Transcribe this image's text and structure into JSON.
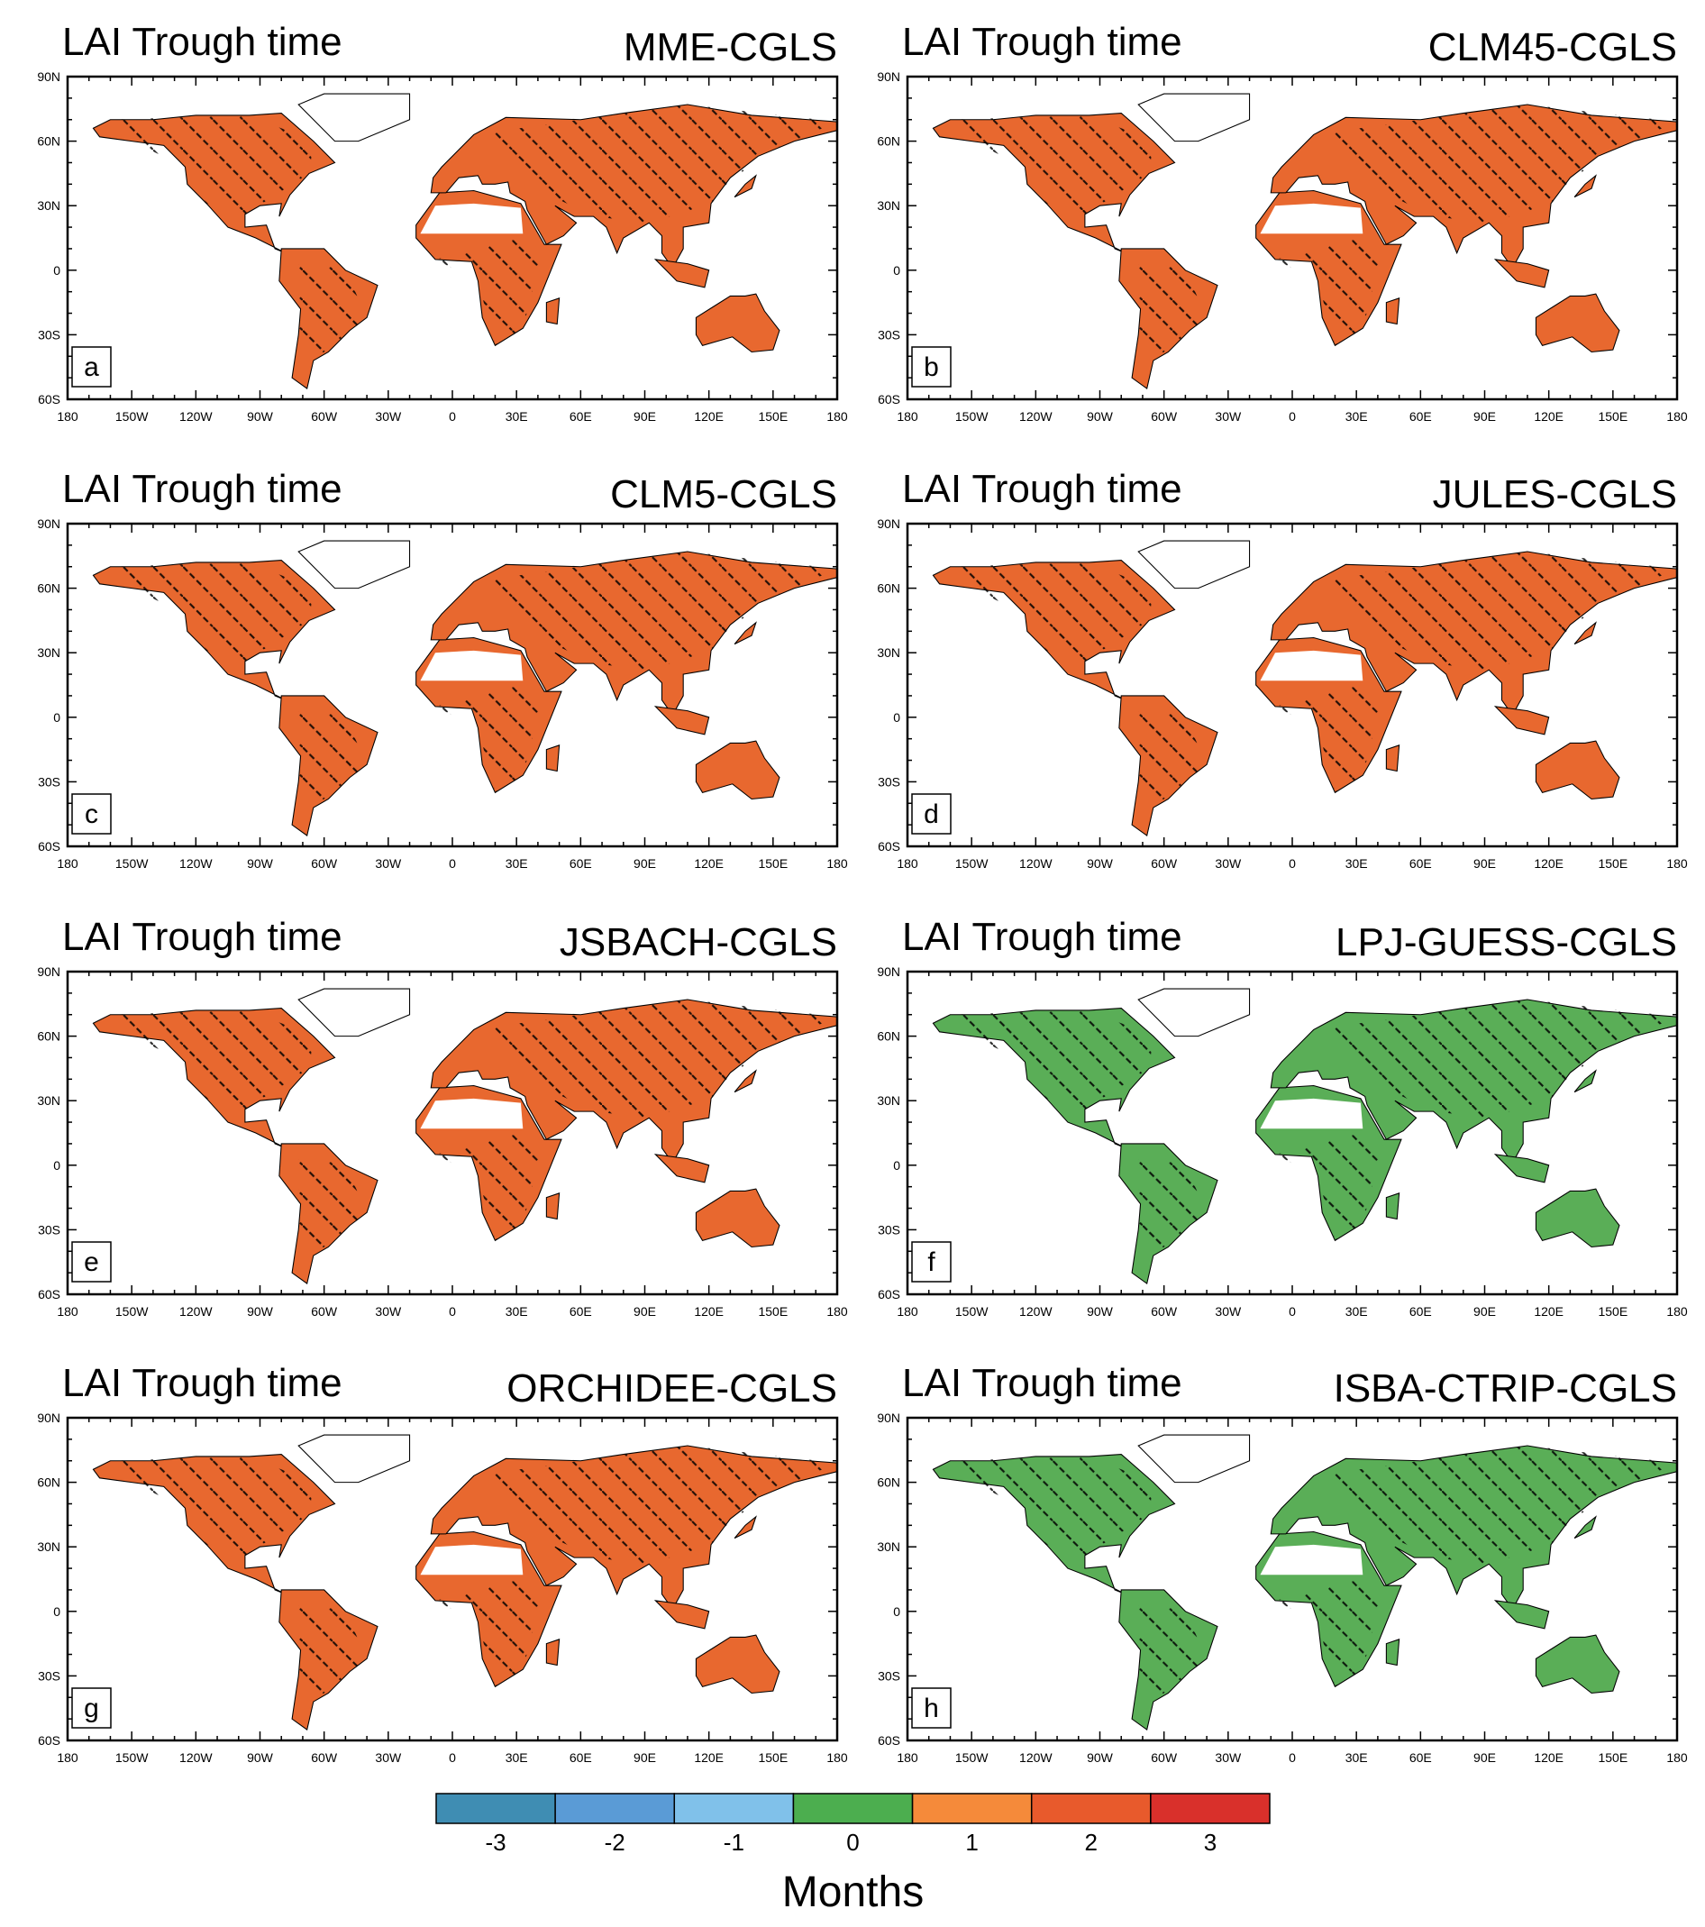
{
  "panels": [
    {
      "title": "LAI Trough time",
      "model": "MME-CGLS",
      "label": "a"
    },
    {
      "title": "LAI Trough time",
      "model": "CLM45-CGLS",
      "label": "b"
    },
    {
      "title": "LAI Trough time",
      "model": "CLM5-CGLS",
      "label": "c"
    },
    {
      "title": "LAI Trough time",
      "model": "JULES-CGLS",
      "label": "d"
    },
    {
      "title": "LAI Trough time",
      "model": "JSBACH-CGLS",
      "label": "e"
    },
    {
      "title": "LAI Trough time",
      "model": "LPJ-GUESS-CGLS",
      "label": "f"
    },
    {
      "title": "LAI Trough time",
      "model": "ORCHIDEE-CGLS",
      "label": "g"
    },
    {
      "title": "LAI Trough time",
      "model": "ISBA-CTRIP-CGLS",
      "label": "h"
    }
  ],
  "lat_labels": [
    "90N",
    "60N",
    "30N",
    "0",
    "30S",
    "60S"
  ],
  "lon_labels": [
    "180",
    "150W",
    "120W",
    "90W",
    "60W",
    "30W",
    "0",
    "30E",
    "60E",
    "90E",
    "120E",
    "150E",
    "180"
  ],
  "colorbar": {
    "colors": [
      "#3f8db3",
      "#5a9bd6",
      "#80c1ea",
      "#4cae4f",
      "#f58a3a",
      "#e85a2c",
      "#d9302b"
    ],
    "labels": [
      -3,
      -2,
      -1,
      0,
      1,
      2,
      3
    ],
    "title": "Months"
  }
}
